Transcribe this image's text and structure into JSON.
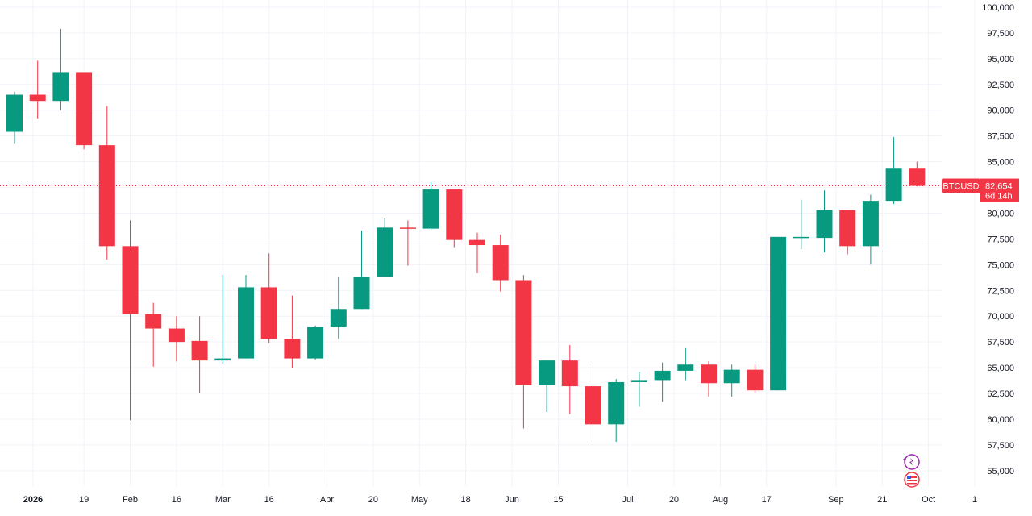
{
  "colors": {
    "up": "#089981",
    "down": "#f23645",
    "grid": "#f0f3fa",
    "axis_text": "#131722",
    "last_price_line": "#f23645",
    "event_icon_purple": "#9c27b0",
    "event_icon_red": "#f23645"
  },
  "symbol_label": "BTCUSD",
  "last_price_label": "82,654",
  "countdown_label": "6d 14h",
  "chart_data": {
    "type": "candlestick",
    "interval": "weekly",
    "y_axis": {
      "min": 53500,
      "max": 100700,
      "ticks": [
        100000,
        97500,
        95000,
        92500,
        90000,
        87500,
        85000,
        82500,
        80000,
        77500,
        75000,
        72500,
        70000,
        67500,
        65000,
        62500,
        60000,
        57500,
        55000
      ],
      "tick_labels": [
        "100,000",
        "97,500",
        "95,000",
        "92,500",
        "90,000",
        "87,500",
        "85,000",
        "82,500",
        "80,000",
        "77,500",
        "75,000",
        "72,500",
        "70,000",
        "67,500",
        "65,000",
        "62,500",
        "60,000",
        "57,500",
        "55,000"
      ]
    },
    "x_axis": {
      "tick_labels": [
        {
          "label": "2026",
          "bold": true,
          "slot": 0.8
        },
        {
          "label": "19",
          "slot": 3.0
        },
        {
          "label": "Feb",
          "slot": 5.0
        },
        {
          "label": "16",
          "slot": 7.0
        },
        {
          "label": "Mar",
          "slot": 9.0
        },
        {
          "label": "16",
          "slot": 11.0
        },
        {
          "label": "Apr",
          "slot": 13.5
        },
        {
          "label": "20",
          "slot": 15.5
        },
        {
          "label": "May",
          "slot": 17.5
        },
        {
          "label": "18",
          "slot": 19.5
        },
        {
          "label": "Jun",
          "slot": 21.5
        },
        {
          "label": "15",
          "slot": 23.5
        },
        {
          "label": "Jul",
          "slot": 26.5
        },
        {
          "label": "20",
          "slot": 28.5
        },
        {
          "label": "Aug",
          "slot": 30.5
        },
        {
          "label": "17",
          "slot": 32.5
        },
        {
          "label": "Sep",
          "slot": 35.5
        },
        {
          "label": "21",
          "slot": 37.5
        },
        {
          "label": "Oct",
          "slot": 39.5
        },
        {
          "label": "1",
          "slot": 41.5
        }
      ]
    },
    "last_price": 82654,
    "candles": [
      {
        "o": 87900,
        "h": 91800,
        "l": 86800,
        "c": 91500
      },
      {
        "o": 91500,
        "h": 94800,
        "l": 89200,
        "c": 90900
      },
      {
        "o": 90900,
        "h": 97900,
        "l": 90000,
        "c": 93700
      },
      {
        "o": 93700,
        "h": 93700,
        "l": 86200,
        "c": 86600
      },
      {
        "o": 86600,
        "h": 90400,
        "l": 75500,
        "c": 76800
      },
      {
        "o": 76800,
        "h": 79300,
        "l": 59900,
        "c": 70200
      },
      {
        "o": 70200,
        "h": 71300,
        "l": 65100,
        "c": 68800
      },
      {
        "o": 68800,
        "h": 70000,
        "l": 65600,
        "c": 67500
      },
      {
        "o": 67600,
        "h": 70000,
        "l": 62500,
        "c": 65700
      },
      {
        "o": 65700,
        "h": 74000,
        "l": 65400,
        "c": 65900
      },
      {
        "o": 65900,
        "h": 74000,
        "l": 65900,
        "c": 72800
      },
      {
        "o": 72800,
        "h": 76100,
        "l": 67400,
        "c": 67800
      },
      {
        "o": 67800,
        "h": 72000,
        "l": 65000,
        "c": 65900
      },
      {
        "o": 65900,
        "h": 69100,
        "l": 65800,
        "c": 69000
      },
      {
        "o": 69000,
        "h": 73800,
        "l": 67800,
        "c": 70700
      },
      {
        "o": 70700,
        "h": 78300,
        "l": 70700,
        "c": 73800
      },
      {
        "o": 73800,
        "h": 79500,
        "l": 73800,
        "c": 78600
      },
      {
        "o": 78600,
        "h": 79300,
        "l": 74900,
        "c": 78500
      },
      {
        "o": 78500,
        "h": 83000,
        "l": 78400,
        "c": 82300
      },
      {
        "o": 82300,
        "h": 82300,
        "l": 76700,
        "c": 77400
      },
      {
        "o": 77400,
        "h": 78100,
        "l": 74200,
        "c": 76900
      },
      {
        "o": 76900,
        "h": 77900,
        "l": 72400,
        "c": 73500
      },
      {
        "o": 73500,
        "h": 74000,
        "l": 59100,
        "c": 63300
      },
      {
        "o": 63300,
        "h": 65700,
        "l": 60700,
        "c": 65700
      },
      {
        "o": 65700,
        "h": 67200,
        "l": 60500,
        "c": 63200
      },
      {
        "o": 63200,
        "h": 65600,
        "l": 58000,
        "c": 59500
      },
      {
        "o": 59500,
        "h": 63900,
        "l": 57800,
        "c": 63600
      },
      {
        "o": 63600,
        "h": 64600,
        "l": 61200,
        "c": 63800
      },
      {
        "o": 63800,
        "h": 65500,
        "l": 61700,
        "c": 64700
      },
      {
        "o": 64700,
        "h": 66900,
        "l": 63800,
        "c": 65300
      },
      {
        "o": 65300,
        "h": 65600,
        "l": 62200,
        "c": 63500
      },
      {
        "o": 63500,
        "h": 65300,
        "l": 62200,
        "c": 64800
      },
      {
        "o": 64800,
        "h": 65300,
        "l": 62500,
        "c": 62800
      },
      {
        "o": 62800,
        "h": 77700,
        "l": 62800,
        "c": 77700
      },
      {
        "o": 77700,
        "h": 81300,
        "l": 76500,
        "c": 77700
      },
      {
        "o": 77600,
        "h": 82200,
        "l": 76200,
        "c": 80300
      },
      {
        "o": 80300,
        "h": 80300,
        "l": 76000,
        "c": 76800
      },
      {
        "o": 76800,
        "h": 81800,
        "l": 75000,
        "c": 81200
      },
      {
        "o": 81200,
        "h": 87400,
        "l": 80900,
        "c": 84400
      },
      {
        "o": 84400,
        "h": 85000,
        "l": 82600,
        "c": 82654
      }
    ]
  }
}
